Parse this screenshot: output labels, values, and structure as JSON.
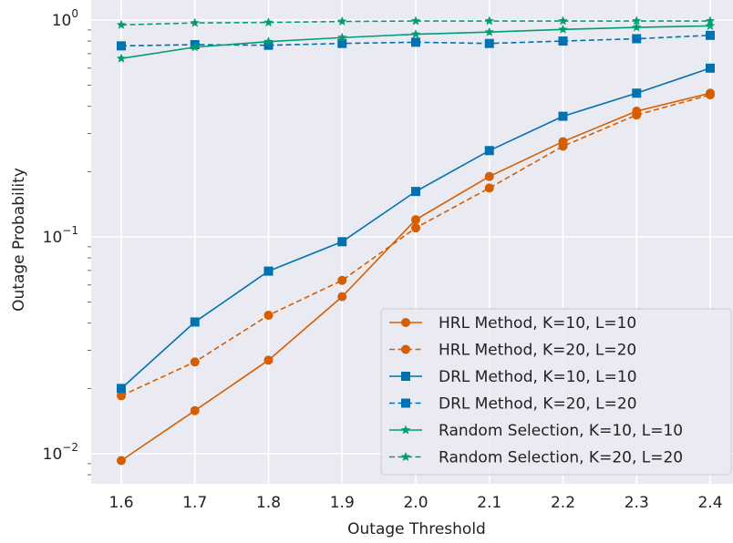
{
  "chart_data": {
    "type": "line",
    "xlabel": "Outage Threshold",
    "ylabel": "Outage Probability",
    "x": [
      1.6,
      1.7,
      1.8,
      1.9,
      2.0,
      2.1,
      2.2,
      2.3,
      2.4
    ],
    "x_tick_labels": [
      "1.6",
      "1.7",
      "1.8",
      "1.9",
      "2.0",
      "2.1",
      "2.2",
      "2.3",
      "2.4"
    ],
    "xlim": [
      1.56,
      2.42
    ],
    "ylim": [
      0.0075,
      1.1
    ],
    "yscale": "log",
    "y_ticks": [
      {
        "value": 1,
        "base": "10",
        "exp": "0"
      },
      {
        "value": 0.1,
        "base": "10",
        "exp": "−1"
      },
      {
        "value": 0.01,
        "base": "10",
        "exp": "−2"
      }
    ],
    "grid": true,
    "background": "#eaeaf2",
    "legend_position": "lower-right",
    "series": [
      {
        "name": "HRL Method, K=10, L=10",
        "color": "#d55e00",
        "dash": "solid",
        "marker": "circle",
        "values": [
          0.0093,
          0.0158,
          0.027,
          0.053,
          0.12,
          0.19,
          0.275,
          0.38,
          0.46
        ]
      },
      {
        "name": "HRL Method, K=20, L=20",
        "color": "#d55e00",
        "dash": "dashed",
        "marker": "circle",
        "values": [
          0.0185,
          0.0265,
          0.0435,
          0.063,
          0.11,
          0.168,
          0.262,
          0.365,
          0.452
        ]
      },
      {
        "name": "DRL Method, K=10, L=10",
        "color": "#0072b2",
        "dash": "solid",
        "marker": "square",
        "values": [
          0.02,
          0.0405,
          0.0695,
          0.095,
          0.162,
          0.25,
          0.36,
          0.46,
          0.6
        ]
      },
      {
        "name": "DRL Method, K=20, L=20",
        "color": "#0072b2",
        "dash": "dashed",
        "marker": "square",
        "values": [
          0.76,
          0.77,
          0.765,
          0.78,
          0.79,
          0.78,
          0.8,
          0.82,
          0.85
        ]
      },
      {
        "name": "Random Selection, K=10, L=10",
        "color": "#009e73",
        "dash": "solid",
        "marker": "star",
        "values": [
          0.665,
          0.75,
          0.795,
          0.83,
          0.86,
          0.88,
          0.905,
          0.925,
          0.94
        ]
      },
      {
        "name": "Random Selection, K=20, L=20",
        "color": "#009e73",
        "dash": "dashed",
        "marker": "star",
        "values": [
          0.95,
          0.97,
          0.975,
          0.985,
          0.99,
          0.99,
          0.99,
          0.99,
          0.99
        ]
      }
    ]
  }
}
